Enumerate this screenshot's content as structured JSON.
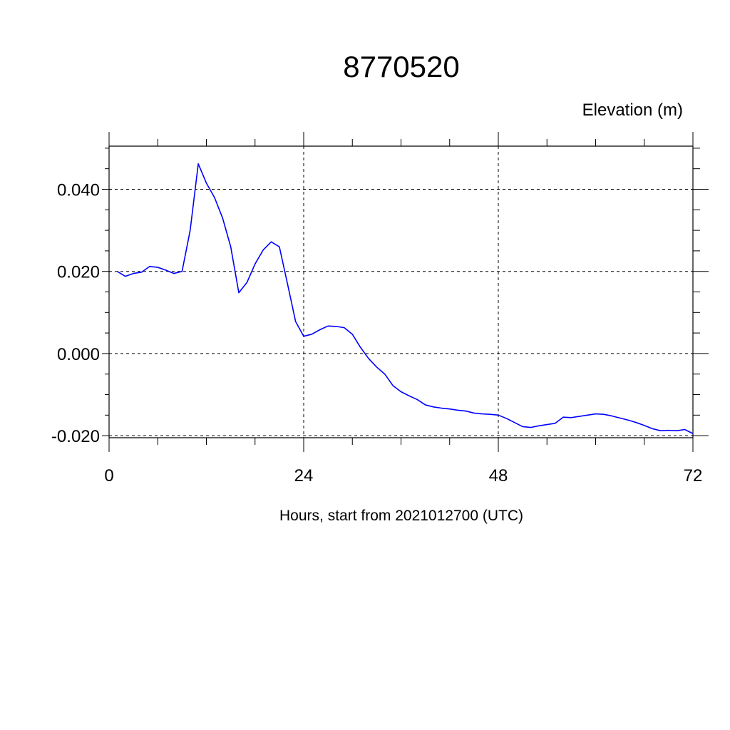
{
  "chart_data": {
    "type": "line",
    "title": "8770520",
    "ylabel": "Elevation (m)",
    "xlabel": "Hours, start from 2021012700 (UTC)",
    "xlim": [
      0,
      72
    ],
    "ylim": [
      -0.0205,
      0.0505
    ],
    "x_ticks": [
      0,
      24,
      48,
      72
    ],
    "x_tick_labels": [
      "0",
      "24",
      "48",
      "72"
    ],
    "y_ticks": [
      -0.02,
      0.0,
      0.02,
      0.04
    ],
    "y_tick_labels": [
      "-0.020",
      "0.000",
      "0.020",
      "0.040"
    ],
    "grid": true,
    "series": [
      {
        "color": "#0000ff",
        "x": [
          1,
          2,
          3,
          4,
          5,
          6,
          7,
          8,
          9,
          10,
          11,
          12,
          13,
          14,
          15,
          16,
          17,
          18,
          19,
          20,
          21,
          22,
          23,
          24,
          25,
          26,
          27,
          28,
          29,
          30,
          31,
          32,
          33,
          34,
          35,
          36,
          37,
          38,
          39,
          40,
          41,
          42,
          43,
          44,
          45,
          46,
          47,
          48,
          49,
          50,
          51,
          52,
          53,
          54,
          55,
          56,
          57,
          58,
          59,
          60,
          61,
          62,
          63,
          64,
          65,
          66,
          67,
          68,
          69,
          70,
          71,
          72
        ],
        "values": [
          0.02,
          0.0188,
          0.0195,
          0.0198,
          0.0212,
          0.021,
          0.0203,
          0.0195,
          0.02,
          0.03,
          0.0462,
          0.0415,
          0.038,
          0.033,
          0.026,
          0.0148,
          0.0173,
          0.0218,
          0.0252,
          0.0272,
          0.026,
          0.017,
          0.0078,
          0.0042,
          0.0047,
          0.0058,
          0.0067,
          0.0066,
          0.0063,
          0.0047,
          0.0015,
          -0.0012,
          -0.0033,
          -0.005,
          -0.0078,
          -0.0093,
          -0.0103,
          -0.0112,
          -0.0125,
          -0.013,
          -0.0133,
          -0.0135,
          -0.0138,
          -0.014,
          -0.0145,
          -0.0147,
          -0.0148,
          -0.015,
          -0.0158,
          -0.0168,
          -0.0178,
          -0.018,
          -0.0176,
          -0.0173,
          -0.017,
          -0.0155,
          -0.0156,
          -0.0153,
          -0.015,
          -0.0147,
          -0.0148,
          -0.0152,
          -0.0157,
          -0.0162,
          -0.0168,
          -0.0175,
          -0.0183,
          -0.0188,
          -0.0187,
          -0.0188,
          -0.0185,
          -0.0195
        ]
      }
    ]
  }
}
